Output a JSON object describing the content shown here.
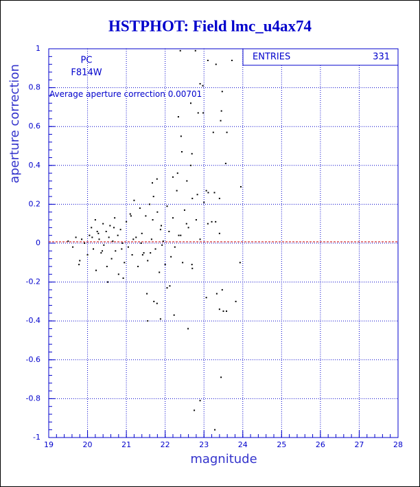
{
  "chart_data": {
    "type": "scatter",
    "title": "HSTPHOT: Field lmc_u4ax74",
    "x_label": "magnitude",
    "y_label": "aperture correction",
    "camera": "PC",
    "filter": "F814W",
    "avg_label": "Average aperture correction",
    "avg_value": 0.00701,
    "entries_label": "ENTRIES",
    "entries": 331,
    "xlim": [
      19,
      28
    ],
    "ylim": [
      -1,
      1
    ],
    "xticks": [
      19,
      20,
      21,
      22,
      23,
      24,
      25,
      26,
      27,
      28
    ],
    "yticks": [
      -1,
      -0.8,
      -0.6,
      -0.4,
      -0.2,
      0,
      0.2,
      0.4,
      0.6,
      0.8,
      1
    ],
    "grid": true,
    "color": "#000000",
    "axis_color": "#0000cc",
    "avg_color": "#cc0000",
    "series": [
      {
        "name": "aperture correction",
        "color": "#000000",
        "x": [
          22.39,
          22.78,
          23.1,
          23.31,
          23.72,
          22.9,
          22.97,
          23.47,
          22.66,
          22.85,
          22.98,
          23.45,
          22.34,
          23.43,
          23.59,
          23.24,
          22.41,
          22.43,
          22.69,
          22.66,
          23.56,
          22.32,
          22.2,
          22.56,
          23.95,
          23.06,
          21.79,
          21.67,
          22.83,
          23.11,
          23.27,
          23.4,
          22.7,
          19.5,
          19.62,
          19.7,
          19.78,
          19.85,
          19.92,
          20.0,
          20.05,
          20.1,
          20.15,
          20.2,
          20.22,
          20.28,
          20.3,
          20.35,
          20.4,
          20.42,
          20.48,
          20.5,
          20.55,
          20.58,
          20.62,
          20.65,
          20.7,
          20.72,
          20.78,
          20.8,
          20.85,
          20.9,
          20.95,
          21.0,
          21.05,
          21.1,
          21.15,
          21.2,
          21.25,
          21.3,
          21.35,
          21.4,
          21.45,
          21.5,
          21.55,
          21.6,
          21.65,
          21.7,
          21.75,
          21.8,
          21.85,
          21.9,
          21.95,
          22.0,
          22.05,
          22.1,
          22.15,
          22.2,
          22.25,
          22.3,
          22.4,
          22.45,
          22.5,
          22.6,
          22.7,
          22.8,
          22.9,
          23.0,
          23.1,
          23.2,
          23.3,
          23.4,
          20.12,
          20.38,
          20.68,
          20.92,
          21.18,
          21.42,
          21.68,
          21.92,
          19.8,
          20.25,
          20.52,
          20.88,
          21.12,
          21.38,
          21.62,
          21.88,
          22.12,
          22.35,
          22.55,
          22.69,
          22.05,
          23.47,
          23.33,
          23.06,
          23.82,
          23.4,
          23.5,
          23.58,
          21.79,
          21.53,
          21.55,
          22.23,
          22.59,
          21.88,
          21.71,
          23.44,
          22.75,
          22.9,
          23.28,
          23.93
        ],
        "values": [
          0.99,
          0.99,
          0.94,
          0.92,
          0.94,
          0.82,
          0.81,
          0.78,
          0.72,
          0.67,
          0.67,
          0.68,
          0.65,
          0.63,
          0.57,
          0.57,
          0.55,
          0.47,
          0.46,
          0.4,
          0.41,
          0.36,
          0.34,
          0.32,
          0.29,
          0.27,
          0.33,
          0.31,
          0.25,
          0.26,
          0.26,
          0.23,
          0.23,
          0.01,
          -0.02,
          0.03,
          -0.11,
          0.02,
          0.0,
          -0.06,
          0.04,
          0.08,
          -0.03,
          0.12,
          -0.14,
          0.05,
          0.02,
          -0.05,
          0.1,
          -0.01,
          0.06,
          -0.12,
          0.03,
          0.09,
          -0.08,
          0.01,
          0.13,
          -0.04,
          0.04,
          -0.16,
          0.07,
          0.0,
          -0.1,
          0.11,
          -0.02,
          0.15,
          -0.06,
          0.22,
          0.03,
          -0.12,
          0.18,
          0.05,
          -0.05,
          0.14,
          -0.09,
          0.2,
          0.02,
          0.24,
          -0.03,
          0.16,
          -0.15,
          0.09,
          0.01,
          -0.11,
          0.19,
          0.06,
          -0.07,
          0.13,
          -0.02,
          0.27,
          0.04,
          -0.1,
          0.17,
          0.08,
          -0.13,
          0.12,
          0.02,
          0.21,
          0.1,
          0.11,
          0.11,
          0.05,
          0.03,
          -0.04,
          0.08,
          -0.18,
          0.02,
          -0.06,
          0.12,
          -0.01,
          -0.09,
          0.06,
          -0.2,
          -0.03,
          0.14,
          0.0,
          -0.05,
          0.07,
          -0.22,
          0.04,
          0.1,
          -0.11,
          -0.23,
          -0.24,
          -0.26,
          -0.28,
          -0.3,
          -0.34,
          -0.35,
          -0.35,
          -0.31,
          -0.26,
          -0.4,
          -0.37,
          -0.44,
          -0.39,
          -0.3,
          -0.69,
          -0.86,
          -0.81,
          -0.96,
          -0.1
        ]
      }
    ]
  }
}
